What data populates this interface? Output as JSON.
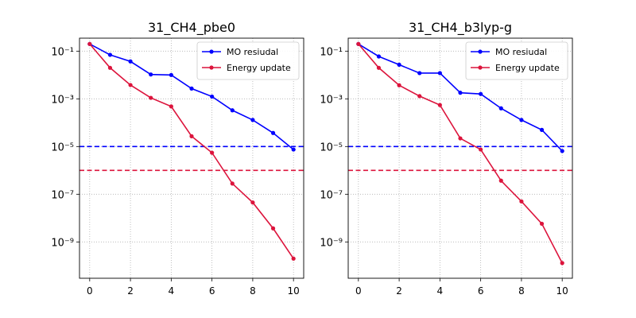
{
  "chart_data": [
    {
      "type": "line",
      "title": "31_CH4_pbe0",
      "xlabel": "",
      "ylabel": "",
      "yscale": "log",
      "xlim": [
        -0.5,
        10.5
      ],
      "ylim": [
        3e-11,
        0.35
      ],
      "x_ticks": [
        0,
        2,
        4,
        6,
        8,
        10
      ],
      "x_tick_labels": [
        "0",
        "2",
        "4",
        "6",
        "8",
        "10"
      ],
      "y_ticks": [
        1e-09,
        1e-07,
        1e-05,
        0.001,
        0.1
      ],
      "y_tick_labels": [
        "10⁻⁹",
        "10⁻⁷",
        "10⁻⁵",
        "10⁻³",
        "10⁻¹"
      ],
      "grid": true,
      "legend_position": "top-right",
      "x": [
        0,
        1,
        2,
        3,
        4,
        5,
        6,
        7,
        8,
        9,
        10
      ],
      "series": [
        {
          "name": "MO resiudal",
          "color": "#0000ff",
          "marker": "circle",
          "values": [
            0.2,
            0.07,
            0.037,
            0.0105,
            0.01,
            0.0027,
            0.00125,
            0.00033,
            0.00013,
            3.7e-05,
            7.5e-06
          ]
        },
        {
          "name": "Energy update",
          "color": "#dc143c",
          "marker": "circle",
          "values": [
            0.2,
            0.02,
            0.0038,
            0.0011,
            0.00048,
            2.7e-05,
            5.5e-06,
            2.8e-07,
            4.5e-08,
            3.7e-09,
            2e-10
          ]
        }
      ],
      "reference_lines": [
        {
          "y": 1e-05,
          "color": "#0000ff",
          "style": "dashed"
        },
        {
          "y": 1e-06,
          "color": "#dc143c",
          "style": "dashed"
        }
      ]
    },
    {
      "type": "line",
      "title": "31_CH4_b3lyp-g",
      "xlabel": "",
      "ylabel": "",
      "yscale": "log",
      "xlim": [
        -0.5,
        10.5
      ],
      "ylim": [
        3e-11,
        0.35
      ],
      "x_ticks": [
        0,
        2,
        4,
        6,
        8,
        10
      ],
      "x_tick_labels": [
        "0",
        "2",
        "4",
        "6",
        "8",
        "10"
      ],
      "y_ticks": [
        1e-09,
        1e-07,
        1e-05,
        0.001,
        0.1
      ],
      "y_tick_labels": [
        "10⁻⁹",
        "10⁻⁷",
        "10⁻⁵",
        "10⁻³",
        "10⁻¹"
      ],
      "grid": true,
      "legend_position": "top-right",
      "x": [
        0,
        1,
        2,
        3,
        4,
        5,
        6,
        7,
        8,
        9,
        10
      ],
      "series": [
        {
          "name": "MO resiudal",
          "color": "#0000ff",
          "marker": "circle",
          "values": [
            0.2,
            0.06,
            0.027,
            0.012,
            0.012,
            0.0018,
            0.0016,
            0.0004,
            0.00013,
            5e-05,
            6.5e-06
          ]
        },
        {
          "name": "Energy update",
          "color": "#dc143c",
          "marker": "circle",
          "values": [
            0.2,
            0.02,
            0.0037,
            0.0013,
            0.00055,
            2.2e-05,
            7.5e-06,
            3.7e-07,
            5e-08,
            5.8e-09,
            1.3e-10
          ]
        }
      ],
      "reference_lines": [
        {
          "y": 1e-05,
          "color": "#0000ff",
          "style": "dashed"
        },
        {
          "y": 1e-06,
          "color": "#dc143c",
          "style": "dashed"
        }
      ]
    }
  ]
}
